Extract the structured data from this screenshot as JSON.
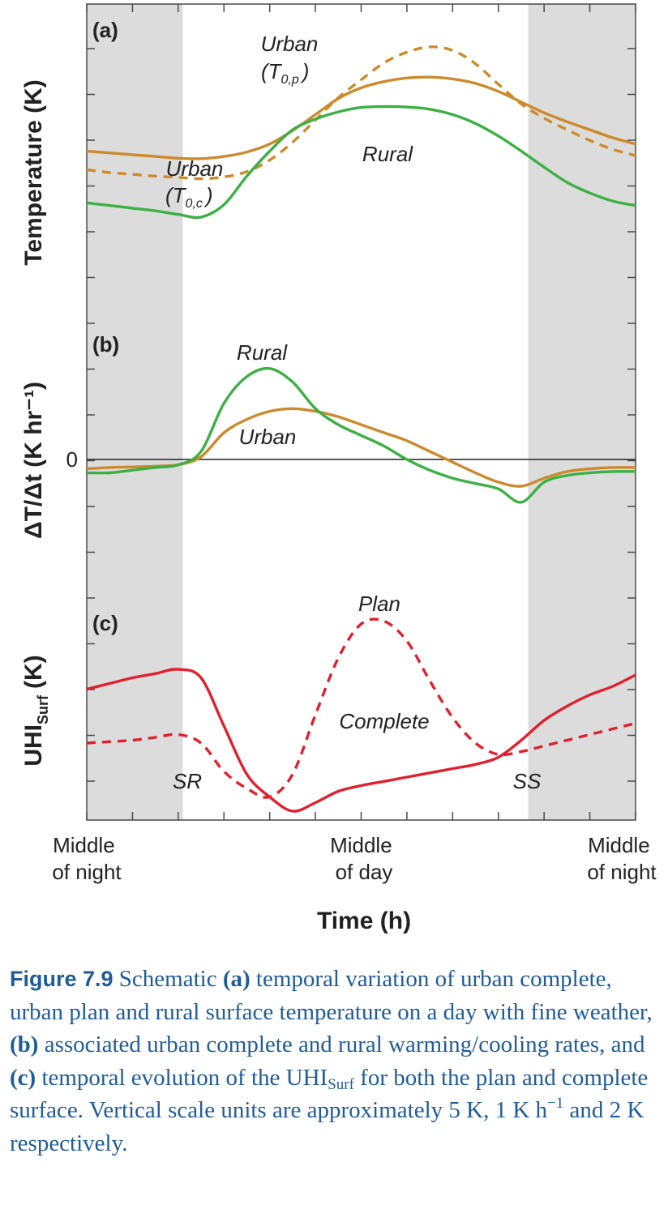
{
  "chart_data": {
    "type": "line",
    "xlabel": "Time (h)",
    "x_tick_labels": [
      {
        "line1": "Middle",
        "line2": "of night"
      },
      {
        "line1": "Middle",
        "line2": "of day"
      },
      {
        "line1": "Middle",
        "line2": "of night"
      }
    ],
    "x": [
      0,
      1,
      2,
      3,
      4,
      5,
      6,
      7,
      8,
      9,
      10,
      11,
      12,
      13,
      14,
      15,
      16,
      17,
      18,
      19,
      20,
      21,
      22,
      23,
      24
    ],
    "shaded_periods": [
      [
        0,
        4.2
      ],
      [
        19.3,
        24
      ]
    ],
    "event_labels": [
      {
        "text": "SR",
        "x": 4.2
      },
      {
        "text": "SS",
        "x": 19.3
      }
    ],
    "grid": false,
    "colors": {
      "urban": "#cc8a2c",
      "rural": "#3cb043",
      "uhi": "#e0202e",
      "shade": "#dcdcdc",
      "caption": "#1f5c99"
    },
    "panels": [
      {
        "id": "a",
        "label": "(a)",
        "ylabel": "Temperature (K)",
        "series": [
          {
            "key": "urban_plan",
            "style": "dashed",
            "color": "#cc8a2c",
            "values": [
              -3.6,
              -3.9,
              -4.1,
              -4.3,
              -4.45,
              -4.6,
              -4.4,
              -3.8,
              -2.5,
              -0.5,
              2.0,
              4.5,
              6.5,
              8.4,
              9.6,
              10.2,
              9.8,
              8.3,
              6.0,
              3.8,
              2.2,
              0.9,
              -0.3,
              -1.3,
              -2.0
            ]
          },
          {
            "key": "urban_complete",
            "style": "solid",
            "color": "#cc8a2c",
            "values": [
              -1.5,
              -1.7,
              -1.9,
              -2.1,
              -2.3,
              -2.35,
              -2.1,
              -1.6,
              -0.7,
              0.8,
              2.6,
              4.4,
              5.6,
              6.3,
              6.7,
              6.8,
              6.6,
              6.1,
              5.2,
              4.0,
              2.8,
              1.8,
              0.9,
              0.0,
              -0.7
            ]
          },
          {
            "key": "rural",
            "style": "solid",
            "color": "#3cb043",
            "values": [
              -7.3,
              -7.6,
              -7.9,
              -8.2,
              -8.6,
              -8.9,
              -7.5,
              -4.3,
              -1.5,
              0.9,
              2.1,
              2.9,
              3.4,
              3.5,
              3.45,
              3.2,
              2.6,
              1.6,
              0.2,
              -1.5,
              -3.3,
              -5.0,
              -6.2,
              -7.1,
              -7.6
            ]
          }
        ],
        "labels": [
          {
            "text": "Urban",
            "sub": "(T",
            "subscript": "0,p",
            "close": ")",
            "series": "urban_plan"
          },
          {
            "text": "Urban",
            "sub": "(T",
            "subscript": "0,c",
            "close": ")",
            "series": "urban_complete"
          },
          {
            "text": "Rural",
            "series": "rural"
          }
        ]
      },
      {
        "id": "b",
        "label": "(b)",
        "ylabel": "ΔT/Δt (K hr⁻¹)",
        "y_tick_labels": [
          "0"
        ],
        "series": [
          {
            "key": "urban",
            "style": "solid",
            "color": "#cc8a2c",
            "values": [
              -0.35,
              -0.3,
              -0.28,
              -0.25,
              -0.2,
              0.1,
              1.0,
              1.5,
              1.8,
              1.9,
              1.8,
              1.6,
              1.3,
              1.0,
              0.7,
              0.3,
              -0.1,
              -0.5,
              -0.85,
              -1.0,
              -0.7,
              -0.45,
              -0.35,
              -0.3,
              -0.3
            ]
          },
          {
            "key": "rural",
            "style": "solid",
            "color": "#3cb043",
            "values": [
              -0.5,
              -0.5,
              -0.4,
              -0.3,
              -0.2,
              0.3,
              2.1,
              3.1,
              3.4,
              2.9,
              1.9,
              1.3,
              0.9,
              0.5,
              0.0,
              -0.4,
              -0.7,
              -0.9,
              -1.1,
              -1.6,
              -0.85,
              -0.6,
              -0.5,
              -0.45,
              -0.45
            ]
          }
        ],
        "labels": [
          {
            "text": "Rural",
            "series": "rural"
          },
          {
            "text": "Urban",
            "series": "urban"
          }
        ]
      },
      {
        "id": "c",
        "label": "(c)",
        "ylabel": "UHI",
        "ylabel_sub": "Surf",
        "ylabel_unit": "(K)",
        "series": [
          {
            "key": "complete",
            "style": "solid",
            "color": "#e0202e",
            "values": [
              1.5,
              1.7,
              1.9,
              2.05,
              2.2,
              1.9,
              0.2,
              -1.5,
              -2.3,
              -2.8,
              -2.5,
              -2.1,
              -1.9,
              -1.75,
              -1.6,
              -1.45,
              -1.3,
              -1.15,
              -0.9,
              -0.3,
              0.4,
              0.9,
              1.3,
              1.6,
              2.0
            ]
          },
          {
            "key": "plan",
            "style": "dashed",
            "color": "#e0202e",
            "values": [
              -0.4,
              -0.35,
              -0.3,
              -0.2,
              -0.1,
              -0.4,
              -1.4,
              -2.0,
              -2.3,
              -1.5,
              0.6,
              2.6,
              3.8,
              3.9,
              3.2,
              1.8,
              0.5,
              -0.4,
              -0.8,
              -0.7,
              -0.5,
              -0.3,
              -0.1,
              0.1,
              0.3
            ]
          }
        ],
        "labels": [
          {
            "text": "Plan",
            "series": "plan"
          },
          {
            "text": "Complete",
            "series": "complete"
          }
        ]
      }
    ]
  },
  "caption": {
    "figure_label": "Figure 7.9",
    "parts": [
      {
        "t": "text",
        "v": " Schematic "
      },
      {
        "t": "bold",
        "v": "(a)"
      },
      {
        "t": "text",
        "v": " temporal variation of urban complete, urban plan and rural surface temperature on a day with fine weather, "
      },
      {
        "t": "bold",
        "v": "(b)"
      },
      {
        "t": "text",
        "v": " associated urban complete and rural warming/cooling rates, and "
      },
      {
        "t": "bold",
        "v": "(c)"
      },
      {
        "t": "text",
        "v": " temporal evolution of the UHI"
      },
      {
        "t": "sub",
        "v": "Surf"
      },
      {
        "t": "text",
        "v": " for both the plan and complete surface. Vertical scale units are approximately 5 K, 1 K h"
      },
      {
        "t": "sup",
        "v": "−1"
      },
      {
        "t": "text",
        "v": " and 2 K respectively."
      }
    ]
  }
}
